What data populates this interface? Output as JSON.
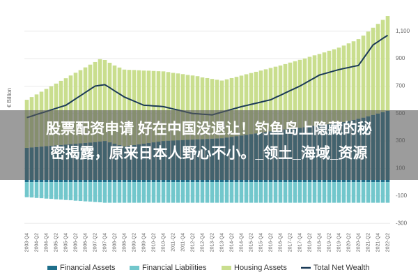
{
  "chart_data": {
    "type": "bar",
    "y_label": "€ Billion",
    "categories": [
      "2003-Q4",
      null,
      "2004-Q2",
      null,
      "2004-Q4",
      null,
      "2005-Q2",
      null,
      "2005-Q4",
      null,
      "2006-Q2",
      null,
      "2006-Q4",
      null,
      "2007-Q2",
      null,
      "2007-Q4",
      null,
      "2008-Q2",
      null,
      "2008-Q4",
      null,
      "2009-Q2",
      null,
      "2009-Q4",
      null,
      "2010-Q2",
      null,
      "2010-Q4",
      null,
      "2011-Q2",
      null,
      "2011-Q4",
      null,
      "2012-Q2",
      null,
      "2012-Q4",
      null,
      "2013-Q2",
      null,
      "2013-Q4",
      null,
      "2014-Q2",
      null,
      "2014-Q4",
      null,
      "2015-Q2",
      null,
      "2015-Q4",
      null,
      "2016-Q2",
      null,
      "2016-Q4",
      null,
      "2017-Q2",
      null,
      "2017-Q4",
      null,
      "2018-Q2",
      null,
      "2018-Q4",
      null,
      "2019-Q2",
      null,
      "2019-Q4",
      null,
      "2020-Q2",
      null,
      "2020-Q4",
      null,
      "2021-Q2",
      null,
      "2021-Q4",
      null,
      "2022-Q2"
    ],
    "series": [
      {
        "name": "Financial Assets",
        "type": "bar",
        "color": "#1f6f8b",
        "values": [
          250,
          253,
          256,
          259,
          262,
          265,
          268,
          271,
          274,
          277,
          280,
          283,
          286,
          289,
          292,
          296,
          300,
          290,
          280,
          270,
          260,
          265,
          270,
          275,
          280,
          285,
          290,
          295,
          300,
          302,
          303,
          305,
          307,
          308,
          310,
          312,
          313,
          315,
          317,
          318,
          320,
          325,
          330,
          335,
          340,
          345,
          350,
          355,
          360,
          365,
          370,
          375,
          380,
          384,
          388,
          392,
          396,
          400,
          405,
          410,
          414,
          418,
          422,
          426,
          430,
          438,
          446,
          454,
          462,
          470,
          480,
          490,
          500,
          510,
          520
        ]
      },
      {
        "name": "Financial Liabilities",
        "type": "bar",
        "color": "#72c7cc",
        "values": [
          -110,
          -112,
          -115,
          -117,
          -120,
          -122,
          -125,
          -127,
          -130,
          -132,
          -135,
          -137,
          -140,
          -142,
          -145,
          -147,
          -150,
          -150,
          -150,
          -150,
          -150,
          -150,
          -150,
          -150,
          -150,
          -150,
          -150,
          -150,
          -150,
          -150,
          -150,
          -150,
          -150,
          -150,
          -150,
          -150,
          -150,
          -150,
          -150,
          -150,
          -150,
          -150,
          -150,
          -150,
          -150,
          -150,
          -150,
          -150,
          -150,
          -150,
          -150,
          -150,
          -150,
          -150,
          -150,
          -150,
          -150,
          -150,
          -150,
          -150,
          -150,
          -150,
          -150,
          -150,
          -150,
          -150,
          -150,
          -150,
          -150,
          -150,
          -150,
          -150,
          -150,
          -150,
          -150
        ]
      },
      {
        "name": "Housing Assets",
        "type": "bar",
        "color": "#c9de8e",
        "values": [
          350,
          367,
          383,
          400,
          417,
          433,
          450,
          467,
          483,
          500,
          517,
          533,
          550,
          567,
          583,
          600,
          590,
          580,
          570,
          565,
          560,
          553,
          547,
          540,
          533,
          527,
          520,
          513,
          507,
          500,
          493,
          487,
          480,
          473,
          467,
          460,
          450,
          443,
          435,
          428,
          420,
          424,
          428,
          432,
          436,
          441,
          445,
          449,
          453,
          457,
          462,
          466,
          470,
          476,
          483,
          489,
          495,
          501,
          508,
          514,
          520,
          527,
          535,
          542,
          550,
          557,
          565,
          572,
          580,
          598,
          617,
          635,
          653,
          672,
          690
        ]
      },
      {
        "name": "Total Net Wealth",
        "type": "line",
        "color": "#1b3a57",
        "values": [
          470,
          481,
          493,
          504,
          515,
          526,
          538,
          549,
          560,
          583,
          607,
          630,
          653,
          677,
          700,
          705,
          710,
          688,
          665,
          643,
          620,
          605,
          590,
          575,
          560,
          558,
          555,
          553,
          550,
          542,
          533,
          525,
          517,
          508,
          500,
          498,
          495,
          493,
          490,
          500,
          510,
          520,
          530,
          540,
          550,
          558,
          567,
          575,
          583,
          592,
          600,
          617,
          633,
          650,
          667,
          683,
          700,
          720,
          740,
          760,
          780,
          790,
          800,
          810,
          820,
          828,
          835,
          843,
          850,
          900,
          950,
          1000,
          1023,
          1047,
          1070
        ]
      }
    ],
    "ylim": [
      -350,
      1200
    ],
    "yticks": [
      -300,
      -100,
      100,
      300,
      500,
      700,
      900,
      {
        "value": 1100,
        "label": "1,100"
      }
    ],
    "grid": true
  },
  "overlay": {
    "lines": [
      "股票配资申请 好在中国没退让！钓鱼岛上隐藏的秘",
      "密揭露，原来日本人野心不小。_领土_海域_资源"
    ]
  }
}
